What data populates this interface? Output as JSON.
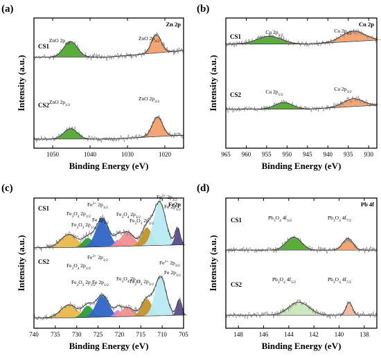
{
  "ylabel": "Intensity (a.u.)",
  "chart_data": [
    {
      "type": "line",
      "panel_label": "(a)",
      "title": "Zn 2p",
      "xlabel": "Binding Energy (eV)",
      "xlim": [
        1055,
        1015
      ],
      "xticks": [
        1050,
        1040,
        1030,
        1020
      ],
      "series": [
        {
          "name": "CS1",
          "offset": 0.7,
          "baseline": [
            [
              1055,
              0.0
            ],
            [
              1035,
              0.0
            ],
            [
              1015,
              0.05
            ]
          ],
          "peaks": [
            {
              "label": "ZnO 2p",
              "sub": "1/2",
              "center": 1045.2,
              "height": 0.12,
              "width": 1.8,
              "color": "#4faa2d"
            },
            {
              "label": "ZnO 2p",
              "sub": "3/2",
              "center": 1022.3,
              "height": 0.14,
              "width": 1.3,
              "color": "#f4a06b"
            }
          ]
        },
        {
          "name": "CS2",
          "offset": 0.07,
          "baseline": [
            [
              1055,
              0.0
            ],
            [
              1035,
              0.0
            ],
            [
              1015,
              0.03
            ]
          ],
          "peaks": [
            {
              "label": "ZnO 2p",
              "sub": "1/2",
              "center": 1045.2,
              "height": 0.08,
              "width": 1.8,
              "color": "#4faa2d"
            },
            {
              "label": "ZnO 2p",
              "sub": "3/2",
              "center": 1022.0,
              "height": 0.15,
              "width": 1.4,
              "color": "#f4a06b"
            }
          ]
        }
      ]
    },
    {
      "type": "line",
      "panel_label": "(b)",
      "title": "Cu 2p",
      "xlabel": "Binding Energy (eV)",
      "xlim": [
        965,
        928
      ],
      "xticks": [
        965,
        960,
        955,
        950,
        945,
        940,
        935,
        930
      ],
      "series": [
        {
          "name": "CS1",
          "offset": 0.8,
          "baseline": [
            [
              965,
              0.0
            ],
            [
              945,
              0.0
            ],
            [
              928,
              0.03
            ]
          ],
          "peaks": [
            {
              "label": "Cu 2p",
              "sub": "1/2",
              "center": 954.3,
              "height": 0.06,
              "width": 3.0,
              "color": "#4faa2d"
            },
            {
              "label": "Cu 2p",
              "sub": "3/2",
              "center": 933.8,
              "height": 0.08,
              "width": 2.8,
              "color": "#f4a06b"
            }
          ]
        },
        {
          "name": "CS2",
          "offset": 0.3,
          "baseline": [
            [
              965,
              0.0
            ],
            [
              945,
              0.0
            ],
            [
              928,
              0.03
            ]
          ],
          "peaks": [
            {
              "label": "Cu 2p",
              "sub": "1/2",
              "center": 950.8,
              "height": 0.05,
              "width": 2.2,
              "color": "#4faa2d"
            },
            {
              "label": "Cu 2p",
              "sub": "3/2",
              "center": 933.8,
              "height": 0.06,
              "width": 2.4,
              "color": "#f4a06b"
            }
          ]
        }
      ]
    },
    {
      "type": "line",
      "panel_label": "(c)",
      "title": "Fe2p",
      "xlabel": "Binding Energy (eV)",
      "xlim": [
        740,
        705
      ],
      "xticks": [
        740,
        735,
        730,
        725,
        720,
        715,
        710,
        705
      ],
      "series": [
        {
          "name": "CS1",
          "offset": 0.62,
          "baseline": [
            [
              740,
              0.0
            ],
            [
              731,
              0.0
            ],
            [
              706,
              0.02
            ]
          ],
          "peaks": [
            {
              "label": "Fe3O4 2p1/2",
              "center": 731.8,
              "height": 0.1,
              "width": 1.9,
              "color": "#e8b84b"
            },
            {
              "label": "Fe2O3 2p1/2",
              "center": 727.4,
              "height": 0.07,
              "width": 1.2,
              "color": "#2e9a3a"
            },
            {
              "label": "Fe2+ 2p1/2",
              "center": 724.0,
              "height": 0.22,
              "width": 1.5,
              "color": "#2f65c6"
            },
            {
              "label": "Fe 2p1/2",
              "center": 720.4,
              "height": 0.05,
              "width": 0.8,
              "color": "#d57ed6"
            },
            {
              "label": "Fe3O4 2p3/2",
              "center": 718.2,
              "height": 0.11,
              "width": 1.5,
              "color": "#f08f8f"
            },
            {
              "label": "Fe2O3 2p3/2",
              "center": 713.6,
              "height": 0.14,
              "width": 1.2,
              "color": "#c2922b"
            },
            {
              "label": "Fe2+ 2p3/2",
              "center": 710.6,
              "height": 0.33,
              "width": 1.4,
              "color": "#b8eaf2"
            },
            {
              "label": "Fe 2p3/2",
              "center": 706.4,
              "height": 0.13,
              "width": 0.6,
              "color": "#5b4a8a"
            }
          ]
        },
        {
          "name": "CS2",
          "offset": 0.08,
          "baseline": [
            [
              740,
              0.0
            ],
            [
              731,
              0.0
            ],
            [
              706,
              0.02
            ]
          ],
          "peaks": [
            {
              "label": "Fe3O4 2p1/2",
              "center": 731.8,
              "height": 0.1,
              "width": 1.9,
              "color": "#e8b84b"
            },
            {
              "label": "Fe2O3 2p1/2",
              "center": 727.4,
              "height": 0.09,
              "width": 1.2,
              "color": "#2e9a3a"
            },
            {
              "label": "Fe2+ 2p1/2",
              "center": 724.0,
              "height": 0.17,
              "width": 1.5,
              "color": "#2f65c6"
            },
            {
              "label": "Fe 2p1/2",
              "center": 720.4,
              "height": 0.05,
              "width": 0.8,
              "color": "#d57ed6"
            },
            {
              "label": "Fe3O4 2p3/2",
              "center": 718.2,
              "height": 0.07,
              "width": 1.5,
              "color": "#f08f8f"
            },
            {
              "label": "Fe2O3 2p3/2",
              "center": 713.6,
              "height": 0.13,
              "width": 1.2,
              "color": "#c2922b"
            },
            {
              "label": "Fe2+ 2p3/2",
              "center": 710.4,
              "height": 0.3,
              "width": 1.3,
              "color": "#b8eaf2"
            },
            {
              "label": "Fe 2p3/2",
              "center": 706.0,
              "height": 0.12,
              "width": 0.6,
              "color": "#5b4a8a"
            }
          ]
        }
      ]
    },
    {
      "type": "line",
      "panel_label": "(d)",
      "title": "Pb 4f",
      "xlabel": "Binding Energy (eV)",
      "xlim": [
        149,
        137
      ],
      "xticks": [
        148,
        146,
        144,
        142,
        140,
        138
      ],
      "series": [
        {
          "name": "CS1",
          "offset": 0.6,
          "baseline": [
            [
              149,
              0.0
            ],
            [
              137,
              0.0
            ]
          ],
          "peaks": [
            {
              "label": "Pb3O4 4f",
              "sub": "5/2",
              "center": 143.6,
              "height": 0.1,
              "width": 0.6,
              "color": "#4faa2d"
            },
            {
              "label": "Pb3O4 4f",
              "sub": "7/2",
              "center": 139.3,
              "height": 0.09,
              "width": 0.4,
              "color": "#f4a06b"
            }
          ]
        },
        {
          "name": "CS2",
          "offset": 0.1,
          "baseline": [
            [
              149,
              0.0
            ],
            [
              137,
              0.0
            ]
          ],
          "peaks": [
            {
              "label": "Pb3O4 4f",
              "sub": "5/2",
              "center": 143.2,
              "height": 0.1,
              "width": 0.8,
              "color": "#c9e7b8"
            },
            {
              "label": "Pb3O4 4f",
              "sub": "7/2",
              "center": 139.2,
              "height": 0.1,
              "width": 0.25,
              "color": "#f4b89a"
            }
          ]
        }
      ]
    }
  ]
}
